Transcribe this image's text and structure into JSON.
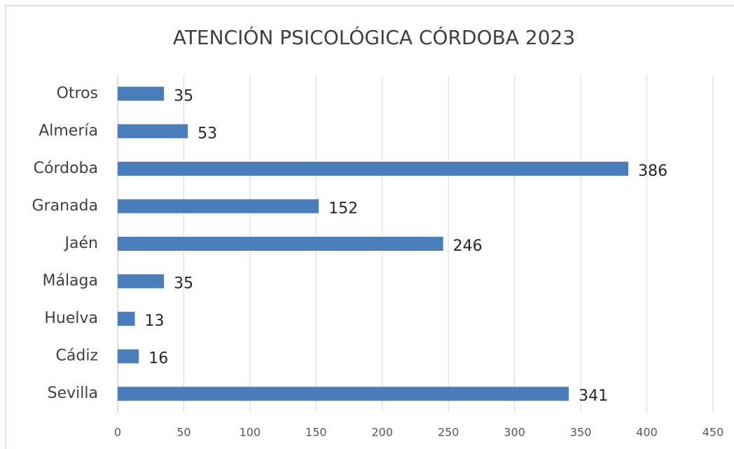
{
  "chart_data": {
    "type": "bar",
    "orientation": "horizontal",
    "title": "ATENCIÓN PSICOLÓGICA CÓRDOBA 2023",
    "categories": [
      "Otros",
      "Almería",
      "Córdoba",
      "Granada",
      "Jaén",
      "Málaga",
      "Huelva",
      "Cádiz",
      "Sevilla"
    ],
    "values": [
      35,
      53,
      386,
      152,
      246,
      35,
      13,
      16,
      341
    ],
    "color": "#4a7ebb",
    "xlim": [
      0,
      450
    ],
    "xticks": [
      0,
      50,
      100,
      150,
      200,
      250,
      300,
      350,
      400,
      450
    ],
    "grid": true
  }
}
